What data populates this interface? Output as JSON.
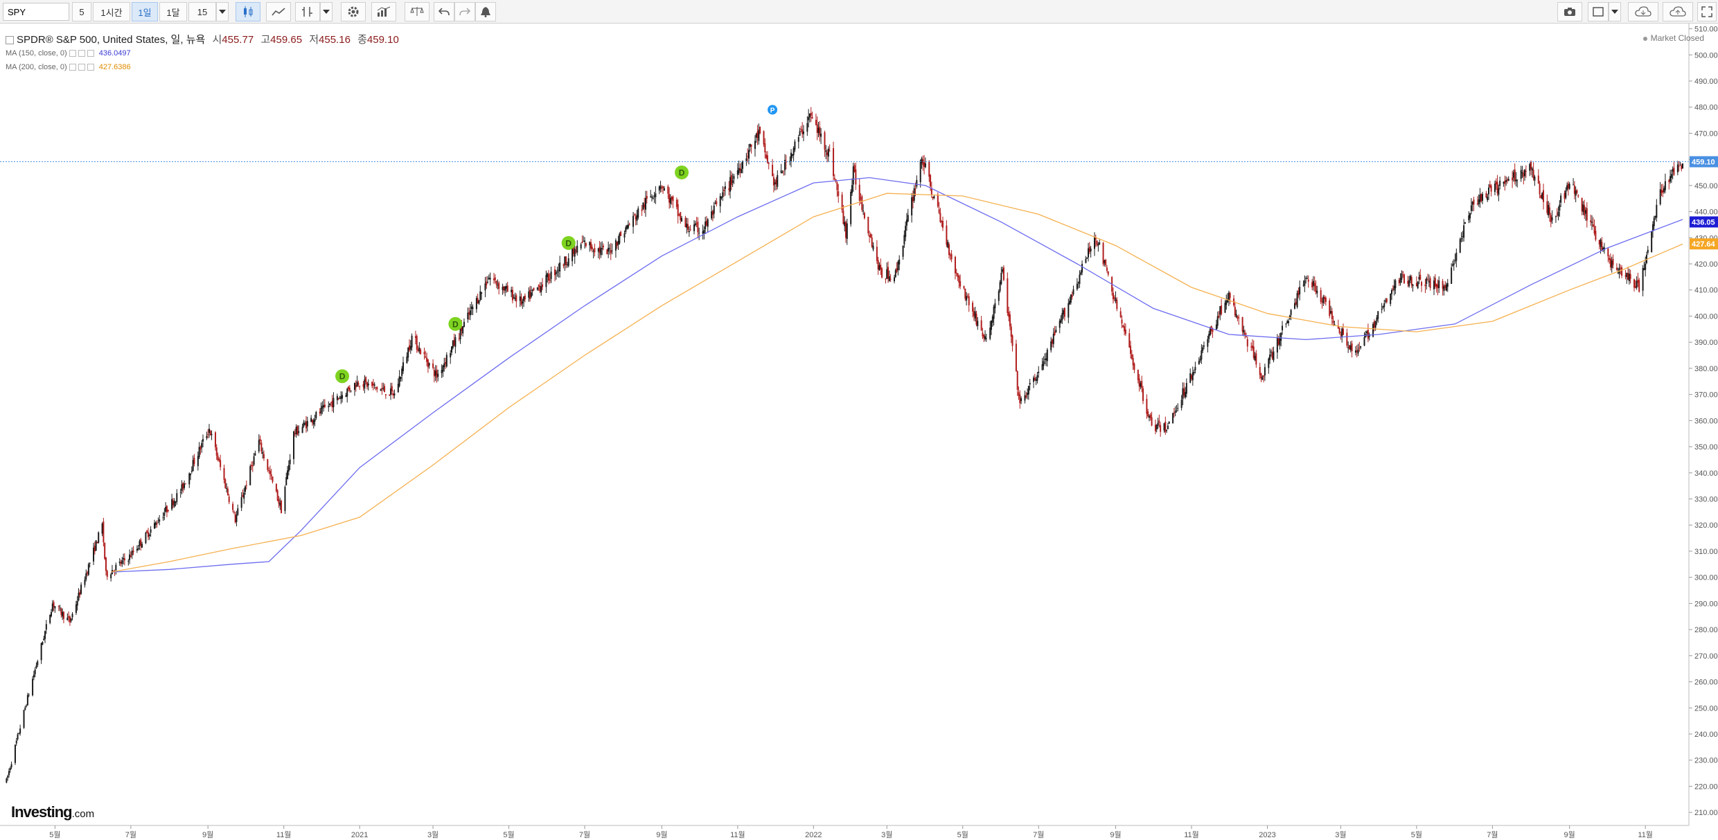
{
  "toolbar": {
    "symbol": "SPY",
    "interval_buttons": [
      "5",
      "1시간",
      "1일",
      "1달"
    ],
    "active_interval": "1일",
    "size_value": "15",
    "icons": [
      "candlestick-icon",
      "line-style-icon",
      "indicator-icon",
      "dropdown-icon",
      "settings-icon",
      "studies-icon",
      "compare-icon",
      "undo-icon",
      "redo-icon",
      "alert-icon",
      "camera-icon",
      "layout-icon",
      "cloud-download-icon",
      "cloud-upload-icon",
      "fullscreen-icon"
    ]
  },
  "legend": {
    "title": "SPDR® S&P 500, United States, 일, 뉴욕",
    "open_label": "시",
    "open": "455.77",
    "high_label": "고",
    "high": "459.65",
    "low_label": "저",
    "low": "455.16",
    "close_label": "종",
    "close": "459.10",
    "ma150_label": "MA (150, close, 0)",
    "ma150_value": "436.0497",
    "ma200_label": "MA (200, close, 0)",
    "ma200_value": "427.6386"
  },
  "status": "Market Closed",
  "logo": {
    "main": "Investing",
    "suffix": ".com"
  },
  "colors": {
    "up": "#1a1a1a",
    "down": "#b01c1c",
    "ma150": "#6b6bf0",
    "ma200": "#f5b04e",
    "last_price_bg": "#4a90e2",
    "ma150_tag": "#1d1dd4",
    "ma200_tag": "#f5a623",
    "dividend_marker": "#7ed321",
    "p_marker": "#2196f3"
  },
  "chart_data": {
    "type": "candlestick",
    "title": "SPDR® S&P 500, United States, 일, 뉴욕",
    "xlabel": "",
    "ylabel": "",
    "ylim": [
      205,
      512
    ],
    "y_ticks": [
      "210.00",
      "220.00",
      "230.00",
      "240.00",
      "250.00",
      "260.00",
      "270.00",
      "280.00",
      "290.00",
      "300.00",
      "310.00",
      "320.00",
      "330.00",
      "340.00",
      "350.00",
      "360.00",
      "370.00",
      "380.00",
      "390.00",
      "400.00",
      "410.00",
      "420.00",
      "430.00",
      "440.00",
      "450.00",
      "460.00",
      "470.00",
      "480.00",
      "490.00",
      "500.00",
      "510.00"
    ],
    "x_ticks": [
      {
        "date": "2020-05-01",
        "label": "5월"
      },
      {
        "date": "2020-07-01",
        "label": "7월"
      },
      {
        "date": "2020-09-01",
        "label": "9월"
      },
      {
        "date": "2020-11-01",
        "label": "11월"
      },
      {
        "date": "2021-01-01",
        "label": "2021"
      },
      {
        "date": "2021-03-01",
        "label": "3월"
      },
      {
        "date": "2021-05-01",
        "label": "5월"
      },
      {
        "date": "2021-07-01",
        "label": "7월"
      },
      {
        "date": "2021-09-01",
        "label": "9월"
      },
      {
        "date": "2021-11-01",
        "label": "11월"
      },
      {
        "date": "2022-01-01",
        "label": "2022"
      },
      {
        "date": "2022-03-01",
        "label": "3월"
      },
      {
        "date": "2022-05-01",
        "label": "5월"
      },
      {
        "date": "2022-07-01",
        "label": "7월"
      },
      {
        "date": "2022-09-01",
        "label": "9월"
      },
      {
        "date": "2022-11-01",
        "label": "11월"
      },
      {
        "date": "2023-01-01",
        "label": "2023"
      },
      {
        "date": "2023-03-01",
        "label": "3월"
      },
      {
        "date": "2023-05-01",
        "label": "5월"
      },
      {
        "date": "2023-07-01",
        "label": "7월"
      },
      {
        "date": "2023-09-01",
        "label": "9월"
      },
      {
        "date": "2023-11-01",
        "label": "11월"
      }
    ],
    "price_path": [
      [
        "2020-03-23",
        222
      ],
      [
        "2020-04-08",
        252
      ],
      [
        "2020-04-29",
        290
      ],
      [
        "2020-05-13",
        283
      ],
      [
        "2020-06-08",
        320
      ],
      [
        "2020-06-11",
        301
      ],
      [
        "2020-06-30",
        308
      ],
      [
        "2020-07-20",
        320
      ],
      [
        "2020-08-10",
        333
      ],
      [
        "2020-09-02",
        357
      ],
      [
        "2020-09-23",
        322
      ],
      [
        "2020-10-12",
        352
      ],
      [
        "2020-10-30",
        326
      ],
      [
        "2020-11-09",
        355
      ],
      [
        "2020-12-31",
        375
      ],
      [
        "2021-01-29",
        370
      ],
      [
        "2021-02-12",
        392
      ],
      [
        "2021-03-04",
        377
      ],
      [
        "2021-04-15",
        415
      ],
      [
        "2021-05-12",
        405
      ],
      [
        "2021-06-30",
        428
      ],
      [
        "2021-07-19",
        424
      ],
      [
        "2021-08-31",
        451
      ],
      [
        "2021-09-20",
        434
      ],
      [
        "2021-10-04",
        433
      ],
      [
        "2021-11-18",
        470
      ],
      [
        "2021-12-01",
        450
      ],
      [
        "2021-12-29",
        477
      ],
      [
        "2022-01-14",
        462
      ],
      [
        "2022-01-27",
        432
      ],
      [
        "2022-02-02",
        455
      ],
      [
        "2022-02-24",
        416
      ],
      [
        "2022-03-08",
        416
      ],
      [
        "2022-03-29",
        461
      ],
      [
        "2022-04-26",
        416
      ],
      [
        "2022-05-20",
        390
      ],
      [
        "2022-06-02",
        417
      ],
      [
        "2022-06-16",
        366
      ],
      [
        "2022-07-05",
        382
      ],
      [
        "2022-08-16",
        431
      ],
      [
        "2022-09-30",
        358
      ],
      [
        "2022-10-12",
        357
      ],
      [
        "2022-11-30",
        408
      ],
      [
        "2022-12-28",
        377
      ],
      [
        "2023-02-02",
        416
      ],
      [
        "2023-03-13",
        385
      ],
      [
        "2023-04-18",
        415
      ],
      [
        "2023-05-24",
        411
      ],
      [
        "2023-06-15",
        443
      ],
      [
        "2023-07-31",
        457
      ],
      [
        "2023-08-18",
        437
      ],
      [
        "2023-09-01",
        451
      ],
      [
        "2023-10-03",
        421
      ],
      [
        "2023-10-27",
        411
      ],
      [
        "2023-11-14",
        449
      ],
      [
        "2023-12-01",
        459.1
      ]
    ],
    "ma150": [
      [
        "2020-06-15",
        302
      ],
      [
        "2020-08-01",
        303
      ],
      [
        "2020-09-20",
        305
      ],
      [
        "2020-10-20",
        306
      ],
      [
        "2020-11-15",
        318
      ],
      [
        "2021-01-01",
        342
      ],
      [
        "2021-03-01",
        363
      ],
      [
        "2021-05-01",
        384
      ],
      [
        "2021-07-01",
        404
      ],
      [
        "2021-09-01",
        423
      ],
      [
        "2021-11-01",
        438
      ],
      [
        "2022-01-01",
        451
      ],
      [
        "2022-02-15",
        453
      ],
      [
        "2022-04-01",
        450
      ],
      [
        "2022-06-01",
        436
      ],
      [
        "2022-08-01",
        420
      ],
      [
        "2022-10-01",
        403
      ],
      [
        "2022-12-01",
        393
      ],
      [
        "2023-02-01",
        391
      ],
      [
        "2023-04-01",
        393
      ],
      [
        "2023-06-01",
        397
      ],
      [
        "2023-08-01",
        412
      ],
      [
        "2023-10-01",
        426
      ],
      [
        "2023-12-01",
        437
      ]
    ],
    "ma200": [
      [
        "2020-06-15",
        302
      ],
      [
        "2020-08-01",
        306
      ],
      [
        "2020-09-20",
        311
      ],
      [
        "2020-11-15",
        316
      ],
      [
        "2021-01-01",
        323
      ],
      [
        "2021-03-01",
        343
      ],
      [
        "2021-05-01",
        365
      ],
      [
        "2021-07-01",
        385
      ],
      [
        "2021-09-01",
        404
      ],
      [
        "2021-11-01",
        421
      ],
      [
        "2022-01-01",
        438
      ],
      [
        "2022-03-01",
        447
      ],
      [
        "2022-05-01",
        446
      ],
      [
        "2022-07-01",
        439
      ],
      [
        "2022-09-01",
        427
      ],
      [
        "2022-11-01",
        411
      ],
      [
        "2023-01-01",
        401
      ],
      [
        "2023-03-01",
        396
      ],
      [
        "2023-05-01",
        394
      ],
      [
        "2023-07-01",
        398
      ],
      [
        "2023-09-01",
        410
      ],
      [
        "2023-10-15",
        418
      ],
      [
        "2023-12-01",
        427.6
      ]
    ],
    "last_price": {
      "value": 459.1,
      "label": "459.10"
    },
    "ma150_tag": {
      "value": 436.05,
      "label": "436.05"
    },
    "ma200_tag": {
      "value": 427.64,
      "label": "427.64"
    },
    "markers": [
      {
        "date": "2020-12-18",
        "value": 377,
        "label": "D"
      },
      {
        "date": "2021-03-19",
        "value": 397,
        "label": "D"
      },
      {
        "date": "2021-06-18",
        "value": 428,
        "label": "D"
      },
      {
        "date": "2021-09-17",
        "value": 455,
        "label": "D"
      },
      {
        "date": "2021-11-29",
        "value": 479,
        "label": "P"
      }
    ]
  }
}
